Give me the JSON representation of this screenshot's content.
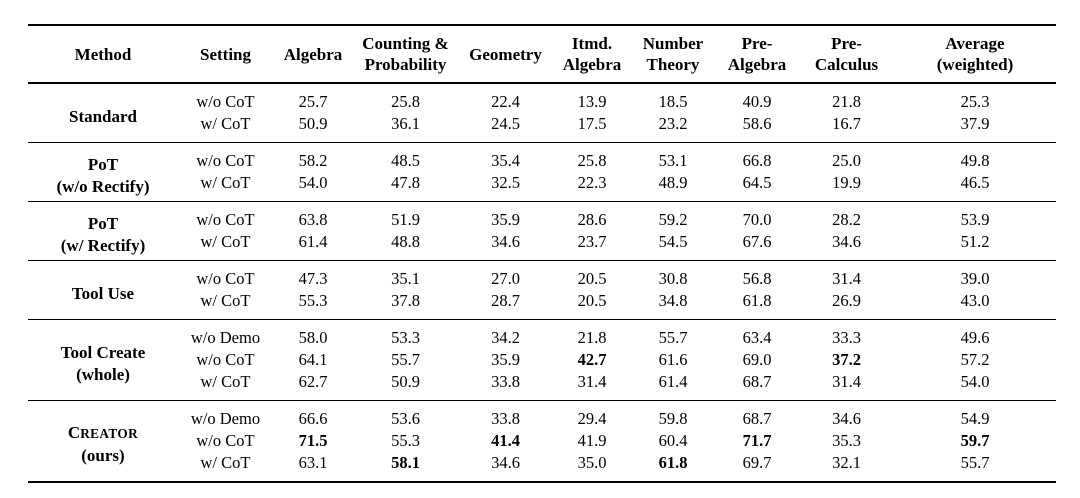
{
  "table": {
    "columns": [
      "Method",
      "Setting",
      "Algebra",
      "Counting &\nProbability",
      "Geometry",
      "Itmd.\nAlgebra",
      "Number\nTheory",
      "Pre-\nAlgebra",
      "Pre-\nCalculus",
      "Average\n(weighted)"
    ],
    "groups": [
      {
        "method_lines": [
          "Standard"
        ],
        "sc": false,
        "rows": [
          {
            "setting": "w/o CoT",
            "values": [
              "25.7",
              "25.8",
              "22.4",
              "13.9",
              "18.5",
              "40.9",
              "21.8",
              "25.3"
            ],
            "bold": []
          },
          {
            "setting": "w/ CoT",
            "values": [
              "50.9",
              "36.1",
              "24.5",
              "17.5",
              "23.2",
              "58.6",
              "16.7",
              "37.9"
            ],
            "bold": []
          }
        ]
      },
      {
        "method_lines": [
          "PoT",
          "(w/o Rectify)"
        ],
        "sc": false,
        "rows": [
          {
            "setting": "w/o CoT",
            "values": [
              "58.2",
              "48.5",
              "35.4",
              "25.8",
              "53.1",
              "66.8",
              "25.0",
              "49.8"
            ],
            "bold": []
          },
          {
            "setting": "w/ CoT",
            "values": [
              "54.0",
              "47.8",
              "32.5",
              "22.3",
              "48.9",
              "64.5",
              "19.9",
              "46.5"
            ],
            "bold": []
          }
        ]
      },
      {
        "method_lines": [
          "PoT",
          "(w/ Rectify)"
        ],
        "sc": false,
        "rows": [
          {
            "setting": "w/o CoT",
            "values": [
              "63.8",
              "51.9",
              "35.9",
              "28.6",
              "59.2",
              "70.0",
              "28.2",
              "53.9"
            ],
            "bold": []
          },
          {
            "setting": "w/ CoT",
            "values": [
              "61.4",
              "48.8",
              "34.6",
              "23.7",
              "54.5",
              "67.6",
              "34.6",
              "51.2"
            ],
            "bold": []
          }
        ]
      },
      {
        "method_lines": [
          "Tool Use"
        ],
        "sc": false,
        "rows": [
          {
            "setting": "w/o CoT",
            "values": [
              "47.3",
              "35.1",
              "27.0",
              "20.5",
              "30.8",
              "56.8",
              "31.4",
              "39.0"
            ],
            "bold": []
          },
          {
            "setting": "w/ CoT",
            "values": [
              "55.3",
              "37.8",
              "28.7",
              "20.5",
              "34.8",
              "61.8",
              "26.9",
              "43.0"
            ],
            "bold": []
          }
        ]
      },
      {
        "method_lines": [
          "Tool Create",
          "(whole)"
        ],
        "sc": false,
        "rows": [
          {
            "setting": "w/o Demo",
            "values": [
              "58.0",
              "53.3",
              "34.2",
              "21.8",
              "55.7",
              "63.4",
              "33.3",
              "49.6"
            ],
            "bold": []
          },
          {
            "setting": "w/o CoT",
            "values": [
              "64.1",
              "55.7",
              "35.9",
              "42.7",
              "61.6",
              "69.0",
              "37.2",
              "57.2"
            ],
            "bold": [
              3,
              6
            ]
          },
          {
            "setting": "w/ CoT",
            "values": [
              "62.7",
              "50.9",
              "33.8",
              "31.4",
              "61.4",
              "68.7",
              "31.4",
              "54.0"
            ],
            "bold": []
          }
        ]
      },
      {
        "method_lines": [
          "Creator",
          "(ours)"
        ],
        "sc": true,
        "rows": [
          {
            "setting": "w/o Demo",
            "values": [
              "66.6",
              "53.6",
              "33.8",
              "29.4",
              "59.8",
              "68.7",
              "34.6",
              "54.9"
            ],
            "bold": []
          },
          {
            "setting": "w/o CoT",
            "values": [
              "71.5",
              "55.3",
              "41.4",
              "41.9",
              "60.4",
              "71.7",
              "35.3",
              "59.7"
            ],
            "bold": [
              0,
              2,
              5,
              7
            ]
          },
          {
            "setting": "w/ CoT",
            "values": [
              "63.1",
              "58.1",
              "34.6",
              "35.0",
              "61.8",
              "69.7",
              "32.1",
              "55.7"
            ],
            "bold": [
              1,
              4
            ]
          }
        ]
      }
    ]
  }
}
